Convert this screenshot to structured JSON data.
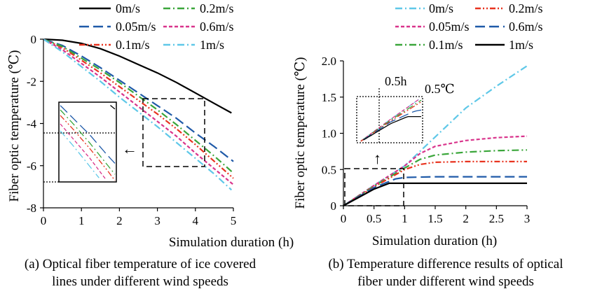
{
  "chart_data": [
    {
      "type": "line",
      "panel": "a",
      "caption_lines": [
        "(a) Optical fiber temperature of ice covered",
        "lines under different wind speeds"
      ],
      "xlabel": "Simulation duration (h)",
      "ylabel": "Fiber optic temperature (℃)",
      "xlim": [
        0,
        5
      ],
      "ylim": [
        -8,
        0
      ],
      "xticks": [
        "0",
        "1",
        "2",
        "3",
        "4",
        "5"
      ],
      "yticks": [
        "0",
        "-2",
        "-4",
        "-6",
        "-8"
      ],
      "grid": false,
      "legend_position": "top-right",
      "inset": {
        "description_marks": "zoomed box with arrow",
        "arrow": "←"
      },
      "series": [
        {
          "name": "0m/s",
          "color": "#000000",
          "dash": "solid",
          "x": [
            0,
            0.5,
            1,
            1.5,
            2,
            2.5,
            3,
            3.5,
            4,
            4.5,
            4.95
          ],
          "y": [
            0,
            -0.05,
            -0.2,
            -0.45,
            -0.8,
            -1.2,
            -1.6,
            -2.05,
            -2.55,
            -3.05,
            -3.5
          ]
        },
        {
          "name": "0.05m/s",
          "color": "#1f5aa8",
          "dash": "longdash",
          "x": [
            0,
            0.5,
            1,
            1.5,
            2,
            2.5,
            3,
            3.5,
            4,
            4.5,
            5
          ],
          "y": [
            0,
            -0.3,
            -0.8,
            -1.35,
            -1.95,
            -2.55,
            -3.15,
            -3.75,
            -4.45,
            -5.1,
            -5.8
          ]
        },
        {
          "name": "0.1m/s",
          "color": "#e8331f",
          "dash": "dashdotdot",
          "x": [
            0,
            0.5,
            1,
            1.5,
            2,
            2.5,
            3,
            3.5,
            4,
            4.5,
            5
          ],
          "y": [
            0,
            -0.4,
            -1.0,
            -1.6,
            -2.25,
            -2.9,
            -3.55,
            -4.25,
            -5.0,
            -5.8,
            -6.6
          ]
        },
        {
          "name": "0.2m/s",
          "color": "#3aa63a",
          "dash": "dashdot",
          "x": [
            0,
            0.5,
            1,
            1.5,
            2,
            2.5,
            3,
            3.5,
            4,
            4.5,
            5
          ],
          "y": [
            0,
            -0.35,
            -0.9,
            -1.45,
            -2.05,
            -2.7,
            -3.35,
            -4.05,
            -4.8,
            -5.55,
            -6.35
          ]
        },
        {
          "name": "0.6m/s",
          "color": "#d9348c",
          "dash": "shortdash",
          "x": [
            0,
            0.5,
            1,
            1.5,
            2,
            2.5,
            3,
            3.5,
            4,
            4.5,
            5
          ],
          "y": [
            0,
            -0.5,
            -1.15,
            -1.8,
            -2.5,
            -3.2,
            -3.9,
            -4.6,
            -5.4,
            -6.15,
            -6.9
          ]
        },
        {
          "name": "1m/s",
          "color": "#5fc8e8",
          "dash": "dashdot",
          "x": [
            0,
            0.5,
            1,
            1.5,
            2,
            2.5,
            3,
            3.5,
            4,
            4.5,
            4.95
          ],
          "y": [
            0,
            -0.6,
            -1.3,
            -2.0,
            -2.75,
            -3.45,
            -4.15,
            -4.9,
            -5.65,
            -6.4,
            -7.15
          ]
        }
      ]
    },
    {
      "type": "line",
      "panel": "b",
      "caption_lines": [
        "(b) Temperature difference results of optical",
        "fiber under different wind speeds"
      ],
      "xlabel": "Simulation duration (h)",
      "ylabel": "Fiber optic temperature (℃)",
      "xlim": [
        0,
        3
      ],
      "ylim": [
        0,
        2.0
      ],
      "xticks": [
        "0",
        "0.5",
        "1",
        "1.5",
        "2",
        "2.5",
        "3"
      ],
      "yticks": [
        "0",
        "0.5",
        "1.0",
        "1.5",
        "2.0"
      ],
      "grid": false,
      "legend_position": "top",
      "inset": {
        "label_time": "0.5h",
        "label_temp": "0.5℃",
        "arrow": "↑"
      },
      "series": [
        {
          "name": "0m/s",
          "color": "#5fc8e8",
          "dash": "dashdot",
          "x": [
            0,
            0.5,
            1,
            1.5,
            2,
            2.5,
            3
          ],
          "y": [
            0,
            0.28,
            0.55,
            0.95,
            1.35,
            1.65,
            1.93
          ]
        },
        {
          "name": "0.05m/s",
          "color": "#d9348c",
          "dash": "shortdash",
          "x": [
            0,
            0.5,
            1,
            1.25,
            1.5,
            2,
            2.5,
            3
          ],
          "y": [
            0,
            0.28,
            0.55,
            0.72,
            0.82,
            0.9,
            0.94,
            0.96
          ]
        },
        {
          "name": "0.1m/s",
          "color": "#3aa63a",
          "dash": "dashdot",
          "x": [
            0,
            0.5,
            1,
            1.25,
            1.5,
            2,
            2.5,
            3
          ],
          "y": [
            0,
            0.27,
            0.52,
            0.64,
            0.7,
            0.74,
            0.76,
            0.77
          ]
        },
        {
          "name": "0.2m/s",
          "color": "#e8331f",
          "dash": "dashdotdot",
          "x": [
            0,
            0.5,
            1,
            1.25,
            1.5,
            2,
            2.5,
            3
          ],
          "y": [
            0,
            0.26,
            0.5,
            0.57,
            0.6,
            0.61,
            0.61,
            0.61
          ]
        },
        {
          "name": "0.6m/s",
          "color": "#1f5aa8",
          "dash": "longdash",
          "x": [
            0,
            0.5,
            0.85,
            1,
            1.5,
            2,
            2.5,
            3
          ],
          "y": [
            0,
            0.25,
            0.37,
            0.39,
            0.4,
            0.4,
            0.4,
            0.4
          ]
        },
        {
          "name": "1m/s",
          "color": "#000000",
          "dash": "solid",
          "x": [
            0,
            0.5,
            0.75,
            1,
            1.5,
            2,
            2.5,
            3
          ],
          "y": [
            0,
            0.23,
            0.31,
            0.31,
            0.31,
            0.31,
            0.31,
            0.31
          ]
        }
      ]
    }
  ]
}
